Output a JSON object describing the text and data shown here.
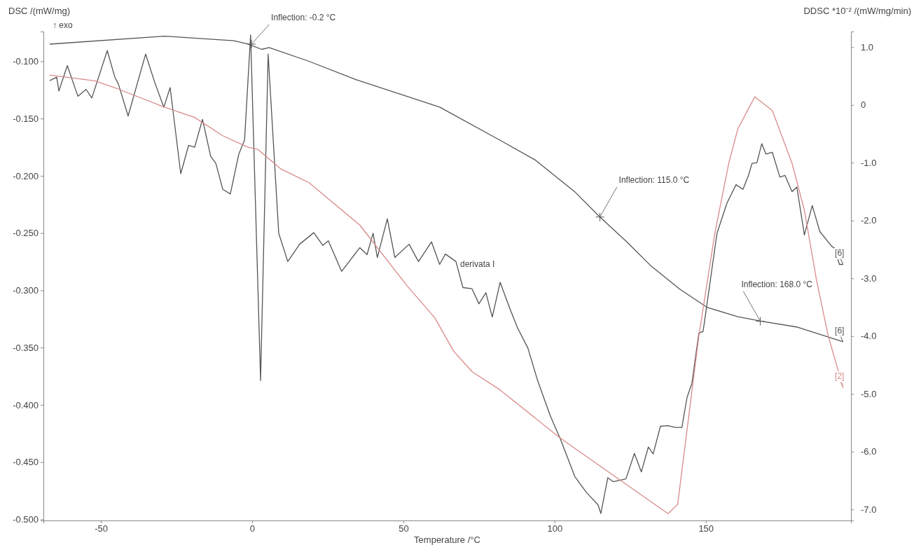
{
  "chart_data": {
    "type": "line",
    "xlabel": "Temperature /°C",
    "ylabel": "DSC /(mW/mg)",
    "y2label": "DDSC *10⁻² /(mW/mg/min)",
    "xlim": [
      -69,
      198
    ],
    "xticks": [
      -50,
      0,
      50,
      100,
      150
    ],
    "ylim": [
      -0.501,
      -0.074
    ],
    "yticks": [
      {
        "value": -0.1,
        "label": "-0.100"
      },
      {
        "value": -0.15,
        "label": "-0.150"
      },
      {
        "value": -0.2,
        "label": "-0.200"
      },
      {
        "value": -0.25,
        "label": "-0.250"
      },
      {
        "value": -0.3,
        "label": "-0.300"
      },
      {
        "value": -0.35,
        "label": "-0.350"
      },
      {
        "value": -0.4,
        "label": "-0.400"
      },
      {
        "value": -0.45,
        "label": "-0.450"
      },
      {
        "value": -0.5,
        "label": "-0.500"
      }
    ],
    "y2lim": [
      -7.19,
      1.27
    ],
    "y2ticks": [
      {
        "value": 1,
        "label": "1.0"
      },
      0,
      {
        "value": -1,
        "label": "-1.0"
      },
      {
        "value": -2,
        "label": "-2.0"
      },
      {
        "value": -3,
        "label": "-3.0"
      },
      {
        "value": -4,
        "label": "-4.0"
      },
      {
        "value": -5,
        "label": "-5.0"
      },
      {
        "value": -6,
        "label": "-6.0"
      },
      {
        "value": -7,
        "label": "-7.0"
      }
    ],
    "grid": false,
    "marker": "none",
    "line_style": "solid",
    "series": [
      {
        "name": "[6]",
        "color": "#555555",
        "x": [
          -66.9,
          -29,
          -6,
          -1.4,
          3.2,
          5.6,
          18.8,
          34.3,
          62,
          82,
          93.5,
          106.7,
          115,
          124,
          132,
          141.4,
          150.5,
          160.6,
          168.5,
          180,
          195.4
        ],
        "values": [
          -0.085,
          -0.078,
          -0.082,
          -0.085,
          -0.0896,
          -0.088,
          -0.1,
          -0.116,
          -0.14,
          -0.169,
          -0.186,
          -0.214,
          -0.236,
          -0.258,
          -0.279,
          -0.299,
          -0.315,
          -0.323,
          -0.327,
          -0.332,
          -0.345
        ]
      },
      {
        "name": "[6]",
        "color": "#555555",
        "axis": "y2",
        "x": [
          -66.9,
          -64.6,
          -63.9,
          -61.1,
          -57.6,
          -54.9,
          -53,
          -47.9,
          -45.4,
          -44.2,
          -41,
          -35.2,
          -32.2,
          -29.2,
          -27.1,
          -23.6,
          -21,
          -19,
          -16.4,
          -13.7,
          -12,
          -9.7,
          -7.2,
          -4.4,
          -2.5,
          -0.5,
          2.8,
          5.3,
          8.8,
          11.8,
          15.7,
          20.4,
          23.4,
          25.2,
          29.6,
          35.6,
          38,
          40,
          41.4,
          44.7,
          47.2,
          51.9,
          55,
          59.3,
          62,
          63.9,
          67.4,
          69.7,
          72.7,
          75,
          77.3,
          79.4,
          82,
          85.2,
          87.7,
          91.2,
          94.4,
          98.6,
          102,
          106.7,
          110.6,
          114.4,
          115.3,
          117.6,
          119.4,
          123.6,
          126.4,
          128.7,
          131,
          132.6,
          135,
          137.5,
          139.8,
          142.1,
          143.8,
          145.4,
          147.7,
          149.1,
          150.2,
          153.7,
          157,
          160,
          162.3,
          164.1,
          165.3,
          166.9,
          168.5,
          169.9,
          172,
          174.5,
          176.2,
          178.5,
          180.1,
          182.6,
          185.2,
          187.7,
          191.7,
          192.4,
          194.2,
          195.4
        ],
        "values": [
          0.42,
          0.48,
          0.24,
          0.68,
          0.15,
          0.27,
          0.12,
          0.94,
          0.48,
          0.36,
          -0.19,
          0.88,
          0.39,
          -0.04,
          0.3,
          -1.19,
          -0.7,
          -0.73,
          -0.25,
          -0.89,
          -1.01,
          -1.46,
          -1.54,
          -0.85,
          -0.61,
          1.21,
          -4.77,
          0.88,
          -2.22,
          -2.71,
          -2.41,
          -2.21,
          -2.43,
          -2.35,
          -2.88,
          -2.47,
          -2.59,
          -2.22,
          -2.64,
          -1.97,
          -2.64,
          -2.41,
          -2.71,
          -2.37,
          -2.76,
          -2.58,
          -2.71,
          -3.16,
          -3.18,
          -3.44,
          -3.25,
          -3.67,
          -3.07,
          -3.52,
          -3.85,
          -4.21,
          -4.77,
          -5.38,
          -5.79,
          -6.43,
          -6.71,
          -6.92,
          -7.07,
          -6.45,
          -6.52,
          -6.47,
          -6.03,
          -6.35,
          -5.92,
          -6.04,
          -5.56,
          -5.55,
          -5.58,
          -5.58,
          -5.06,
          -4.82,
          -3.95,
          -3.92,
          -3.52,
          -2.22,
          -1.7,
          -1.38,
          -1.46,
          -1.22,
          -1.01,
          -1,
          -0.67,
          -0.85,
          -0.82,
          -1.25,
          -1.22,
          -1.5,
          -1.42,
          -2.25,
          -1.74,
          -2.19,
          -2.45,
          -2.47,
          -2.76,
          -2.76
        ]
      },
      {
        "name": "[2]",
        "color": "#d98a8a",
        "x": [
          -67,
          -52,
          -44.5,
          -29,
          -19,
          -9.7,
          -1.4,
          1.9,
          9.5,
          18.8,
          35.6,
          51.2,
          60.4,
          66.6,
          72.7,
          82,
          101.4,
          106.7,
          137.5,
          140.7,
          143.8,
          147.7,
          153,
          157.6,
          160.6,
          166.2,
          172,
          178.5,
          182.6,
          186.6,
          190.5,
          195.4
        ],
        "values": [
          -0.112,
          -0.117,
          -0.124,
          -0.14,
          -0.149,
          -0.165,
          -0.175,
          -0.177,
          -0.194,
          -0.206,
          -0.243,
          -0.296,
          -0.324,
          -0.353,
          -0.371,
          -0.387,
          -0.428,
          -0.438,
          -0.495,
          -0.487,
          -0.422,
          -0.34,
          -0.25,
          -0.189,
          -0.159,
          -0.131,
          -0.143,
          -0.189,
          -0.23,
          -0.291,
          -0.34,
          -0.385
        ]
      }
    ],
    "annotations": [
      {
        "text": "Inflection: -0.2 °C",
        "x": -0.2,
        "y": -0.085
      },
      {
        "text": "Inflection: 115.0 °C",
        "x": 115,
        "y": -0.236
      },
      {
        "text": "Inflection: 168.0 °C",
        "x": 168,
        "y": -0.327
      },
      "derivata I",
      "↑ exo"
    ]
  }
}
